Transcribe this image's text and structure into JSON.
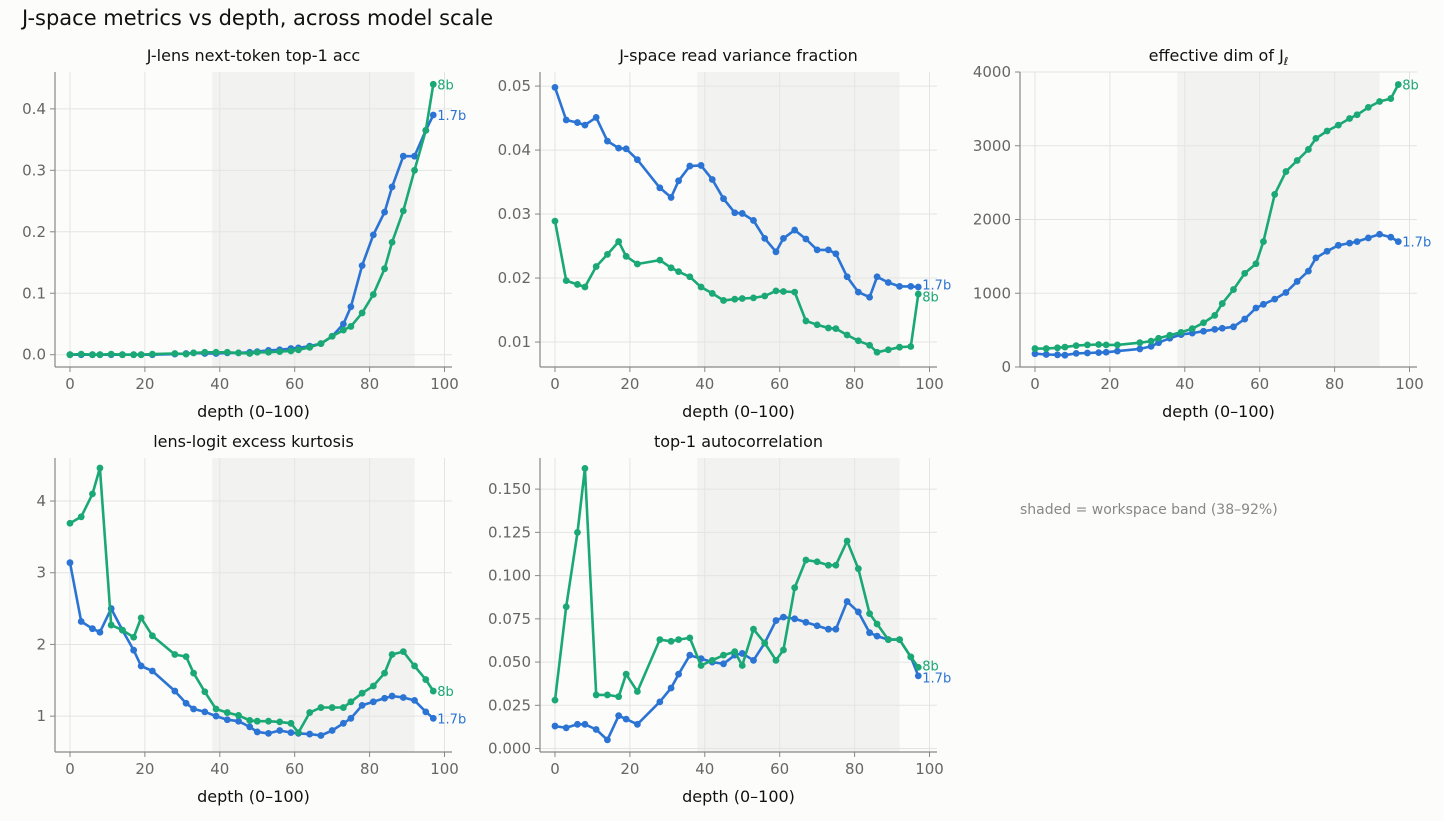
{
  "title": "J-space metrics vs depth, across model scale",
  "note": "shaded = workspace band (38–92%)",
  "colors": {
    "1.7b": "#2b74d4",
    "8b": "#1aa874",
    "band": "#f2f2f0",
    "grid": "#e4e4e4",
    "axis": "#888888",
    "tick_text": "#666666"
  },
  "chart_data": [
    {
      "type": "line",
      "title": "J-lens next-token top-1 acc",
      "xlabel": "depth (0–100)",
      "ylabel": "",
      "xlim": [
        -4,
        102
      ],
      "ylim": [
        -0.02,
        0.46
      ],
      "xticks": [
        0,
        20,
        40,
        60,
        80,
        100
      ],
      "yticks": [
        0.0,
        0.1,
        0.2,
        0.3,
        0.4
      ],
      "ytick_labels": [
        "0.0",
        "0.1",
        "0.2",
        "0.3",
        "0.4"
      ],
      "band": [
        38,
        92
      ],
      "series": [
        {
          "name": "1.7b",
          "x": [
            0,
            3,
            6,
            8,
            11,
            14,
            17,
            19,
            22,
            28,
            31,
            33,
            36,
            39,
            42,
            45,
            48,
            50,
            53,
            56,
            59,
            61,
            64,
            67,
            70,
            73,
            75,
            78,
            81,
            84,
            86,
            89,
            92,
            95,
            97
          ],
          "y": [
            0,
            0,
            0,
            0,
            0,
            0,
            0,
            0,
            0,
            0.001,
            0.002,
            0.003,
            0.002,
            0.002,
            0.003,
            0.003,
            0.004,
            0.005,
            0.007,
            0.008,
            0.01,
            0.011,
            0.014,
            0.018,
            0.03,
            0.05,
            0.078,
            0.145,
            0.195,
            0.232,
            0.273,
            0.323,
            0.323,
            0.365,
            0.39
          ]
        },
        {
          "name": "8b",
          "x": [
            0,
            3,
            6,
            8,
            11,
            14,
            17,
            19,
            22,
            28,
            31,
            33,
            36,
            39,
            42,
            45,
            48,
            50,
            53,
            56,
            59,
            61,
            64,
            67,
            70,
            73,
            75,
            78,
            81,
            84,
            86,
            89,
            92,
            95,
            97
          ],
          "y": [
            0,
            0.001,
            0,
            0,
            0.001,
            0,
            0,
            0,
            0.001,
            0.002,
            0.001,
            0.003,
            0.004,
            0.004,
            0.004,
            0.003,
            0.002,
            0.004,
            0.004,
            0.005,
            0.006,
            0.008,
            0.012,
            0.018,
            0.03,
            0.04,
            0.046,
            0.068,
            0.098,
            0.14,
            0.183,
            0.234,
            0.3,
            0.365,
            0.44
          ]
        }
      ]
    },
    {
      "type": "line",
      "title": "J-space read variance fraction",
      "xlabel": "depth (0–100)",
      "ylabel": "",
      "xlim": [
        -4,
        102
      ],
      "ylim": [
        0.0061,
        0.0522
      ],
      "xticks": [
        0,
        20,
        40,
        60,
        80,
        100
      ],
      "yticks": [
        0.01,
        0.02,
        0.03,
        0.04,
        0.05
      ],
      "ytick_labels": [
        "0.01",
        "0.02",
        "0.03",
        "0.04",
        "0.05"
      ],
      "band": [
        38,
        92
      ],
      "series": [
        {
          "name": "1.7b",
          "x": [
            0,
            3,
            6,
            8,
            11,
            14,
            17,
            19,
            22,
            28,
            31,
            33,
            36,
            39,
            42,
            45,
            48,
            50,
            53,
            56,
            59,
            61,
            64,
            67,
            70,
            73,
            75,
            78,
            81,
            84,
            86,
            89,
            92,
            95,
            97
          ],
          "y": [
            0.0498,
            0.0447,
            0.0443,
            0.0439,
            0.0451,
            0.0414,
            0.0403,
            0.0402,
            0.0385,
            0.0341,
            0.0326,
            0.0352,
            0.0375,
            0.0376,
            0.0354,
            0.0324,
            0.0302,
            0.0301,
            0.029,
            0.0262,
            0.0241,
            0.0262,
            0.0275,
            0.0261,
            0.0244,
            0.0244,
            0.0238,
            0.0202,
            0.0178,
            0.017,
            0.0202,
            0.0193,
            0.0187,
            0.0187,
            0.0186
          ]
        },
        {
          "name": "8b",
          "x": [
            0,
            3,
            6,
            8,
            11,
            14,
            17,
            19,
            22,
            28,
            31,
            33,
            36,
            39,
            42,
            45,
            48,
            50,
            53,
            56,
            59,
            61,
            64,
            67,
            70,
            73,
            75,
            78,
            81,
            84,
            86,
            89,
            92,
            95,
            97
          ],
          "y": [
            0.0289,
            0.0196,
            0.019,
            0.0186,
            0.0218,
            0.0237,
            0.0257,
            0.0234,
            0.0222,
            0.0228,
            0.0216,
            0.021,
            0.0202,
            0.0186,
            0.0176,
            0.0165,
            0.0167,
            0.0168,
            0.0169,
            0.0172,
            0.018,
            0.0179,
            0.0178,
            0.0133,
            0.0127,
            0.0122,
            0.0121,
            0.0111,
            0.0102,
            0.0095,
            0.0084,
            0.0088,
            0.0092,
            0.0093,
            0.0175
          ]
        }
      ]
    },
    {
      "type": "line",
      "title": "effective dim of J",
      "title_sub": "ℓ",
      "xlabel": "depth (0–100)",
      "ylabel": "",
      "xlim": [
        -4,
        102
      ],
      "ylim": [
        0,
        4000
      ],
      "xticks": [
        0,
        20,
        40,
        60,
        80,
        100
      ],
      "yticks": [
        0,
        1000,
        2000,
        3000,
        4000
      ],
      "ytick_labels": [
        "0",
        "1000",
        "2000",
        "3000",
        "4000"
      ],
      "band": [
        38,
        92
      ],
      "series": [
        {
          "name": "1.7b",
          "x": [
            0,
            3,
            6,
            8,
            11,
            14,
            17,
            19,
            22,
            28,
            31,
            33,
            36,
            39,
            42,
            45,
            48,
            50,
            53,
            56,
            59,
            61,
            64,
            67,
            70,
            73,
            75,
            78,
            81,
            84,
            86,
            89,
            92,
            95,
            97
          ],
          "y": [
            180,
            170,
            165,
            160,
            185,
            190,
            195,
            200,
            215,
            245,
            280,
            330,
            390,
            440,
            460,
            485,
            510,
            525,
            545,
            650,
            800,
            850,
            920,
            1010,
            1160,
            1300,
            1480,
            1570,
            1650,
            1680,
            1700,
            1750,
            1800,
            1760,
            1700
          ]
        },
        {
          "name": "8b",
          "x": [
            0,
            3,
            6,
            8,
            11,
            14,
            17,
            19,
            22,
            28,
            31,
            33,
            36,
            39,
            42,
            45,
            48,
            50,
            53,
            56,
            59,
            61,
            64,
            67,
            70,
            73,
            75,
            78,
            81,
            84,
            86,
            89,
            92,
            95,
            97
          ],
          "y": [
            250,
            250,
            260,
            270,
            290,
            300,
            305,
            300,
            300,
            330,
            350,
            390,
            430,
            470,
            520,
            600,
            700,
            860,
            1050,
            1270,
            1400,
            1700,
            2340,
            2650,
            2800,
            2950,
            3100,
            3200,
            3280,
            3370,
            3420,
            3520,
            3600,
            3640,
            3830
          ]
        }
      ]
    },
    {
      "type": "line",
      "title": "lens-logit excess kurtosis",
      "xlabel": "depth (0–100)",
      "ylabel": "",
      "xlim": [
        -4,
        102
      ],
      "ylim": [
        0.5,
        4.6
      ],
      "xticks": [
        0,
        20,
        40,
        60,
        80,
        100
      ],
      "yticks": [
        1,
        2,
        3,
        4
      ],
      "ytick_labels": [
        "1",
        "2",
        "3",
        "4"
      ],
      "band": [
        38,
        92
      ],
      "series": [
        {
          "name": "1.7b",
          "x": [
            0,
            3,
            6,
            8,
            11,
            14,
            17,
            19,
            22,
            28,
            31,
            33,
            36,
            39,
            42,
            45,
            48,
            50,
            53,
            56,
            59,
            61,
            64,
            67,
            70,
            73,
            75,
            78,
            81,
            84,
            86,
            89,
            92,
            95,
            97
          ],
          "y": [
            3.14,
            2.32,
            2.22,
            2.17,
            2.5,
            2.2,
            1.92,
            1.7,
            1.63,
            1.35,
            1.18,
            1.1,
            1.06,
            1.0,
            0.95,
            0.93,
            0.85,
            0.78,
            0.76,
            0.8,
            0.77,
            0.76,
            0.75,
            0.73,
            0.8,
            0.9,
            0.97,
            1.15,
            1.2,
            1.25,
            1.28,
            1.26,
            1.22,
            1.06,
            0.97
          ]
        },
        {
          "name": "8b",
          "x": [
            0,
            3,
            6,
            8,
            11,
            14,
            17,
            19,
            22,
            28,
            31,
            33,
            36,
            39,
            42,
            45,
            48,
            50,
            53,
            56,
            59,
            61,
            64,
            67,
            70,
            73,
            75,
            78,
            81,
            84,
            86,
            89,
            92,
            95,
            97
          ],
          "y": [
            3.69,
            3.78,
            4.1,
            4.46,
            2.27,
            2.2,
            2.1,
            2.37,
            2.12,
            1.86,
            1.83,
            1.6,
            1.34,
            1.1,
            1.05,
            1.01,
            0.94,
            0.93,
            0.93,
            0.92,
            0.9,
            0.77,
            1.05,
            1.12,
            1.12,
            1.12,
            1.2,
            1.32,
            1.42,
            1.6,
            1.86,
            1.9,
            1.7,
            1.51,
            1.35
          ]
        }
      ]
    },
    {
      "type": "line",
      "title": "top-1 autocorrelation",
      "xlabel": "depth (0–100)",
      "ylabel": "",
      "xlim": [
        -4,
        102
      ],
      "ylim": [
        -0.002,
        0.168
      ],
      "xticks": [
        0,
        20,
        40,
        60,
        80,
        100
      ],
      "yticks": [
        0.0,
        0.025,
        0.05,
        0.075,
        0.1,
        0.125,
        0.15
      ],
      "ytick_labels": [
        "0.000",
        "0.025",
        "0.050",
        "0.075",
        "0.100",
        "0.125",
        "0.150"
      ],
      "band": [
        38,
        92
      ],
      "series": [
        {
          "name": "1.7b",
          "x": [
            0,
            3,
            6,
            8,
            11,
            14,
            17,
            19,
            22,
            28,
            31,
            33,
            36,
            39,
            42,
            45,
            48,
            50,
            53,
            56,
            59,
            61,
            64,
            67,
            70,
            73,
            75,
            78,
            81,
            84,
            86,
            89,
            92,
            95,
            97
          ],
          "y": [
            0.013,
            0.012,
            0.014,
            0.014,
            0.011,
            0.005,
            0.019,
            0.017,
            0.014,
            0.027,
            0.035,
            0.043,
            0.054,
            0.052,
            0.05,
            0.049,
            0.054,
            0.055,
            0.051,
            0.061,
            0.074,
            0.076,
            0.075,
            0.073,
            0.071,
            0.069,
            0.069,
            0.085,
            0.079,
            0.067,
            0.065,
            0.063,
            0.063,
            0.053,
            0.042
          ]
        },
        {
          "name": "8b",
          "x": [
            0,
            3,
            6,
            8,
            11,
            14,
            17,
            19,
            22,
            28,
            31,
            33,
            36,
            39,
            42,
            45,
            48,
            50,
            53,
            56,
            59,
            61,
            64,
            67,
            70,
            73,
            75,
            78,
            81,
            84,
            86,
            89,
            92,
            95,
            97
          ],
          "y": [
            0.028,
            0.082,
            0.125,
            0.162,
            0.031,
            0.031,
            0.03,
            0.043,
            0.033,
            0.063,
            0.062,
            0.063,
            0.064,
            0.048,
            0.051,
            0.054,
            0.056,
            0.048,
            0.069,
            0.061,
            0.051,
            0.057,
            0.093,
            0.109,
            0.108,
            0.106,
            0.106,
            0.12,
            0.104,
            0.078,
            0.072,
            0.063,
            0.063,
            0.053,
            0.047
          ]
        }
      ]
    }
  ]
}
